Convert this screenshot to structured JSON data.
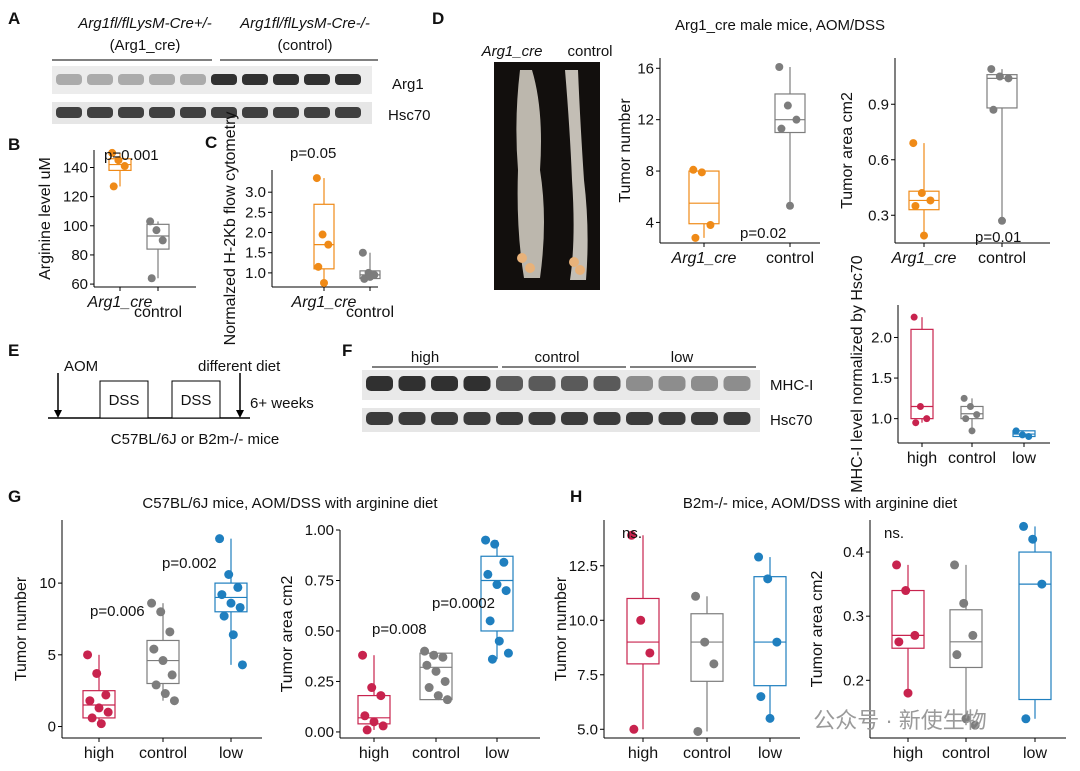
{
  "panel_letters": [
    "A",
    "B",
    "C",
    "D",
    "E",
    "F",
    "G",
    "H"
  ],
  "colors": {
    "high": "#c8234e",
    "control": "#7d7d7d",
    "low": "#1f7fbf",
    "arg1": "#ef8a17",
    "ctrl_dot": "#8a8a8a"
  },
  "panel_a": {
    "group1_line1": "Arg1fl/flLysM-Cre+/-",
    "group1_line2": "(Arg1_cre)",
    "group2_line1": "Arg1fl/flLysM-Cre-/-",
    "group2_line2": "(control)",
    "band1": "Arg1",
    "band2": "Hsc70"
  },
  "panel_b": {
    "pvalue": "p=0.001"
  },
  "panel_c": {
    "pvalue": "p=0.05"
  },
  "panel_d": {
    "title": "Arg1_cre male mice, AOM/DSS",
    "photo_label_1": "Arg1_cre",
    "photo_label_2": "control",
    "pvalue_number": "p=0.02",
    "pvalue_area": "p=0.01"
  },
  "panel_e": {
    "aom": "AOM",
    "diet": "different diet",
    "dss1": "DSS",
    "dss2": "DSS",
    "weeks": "6+ weeks",
    "mice": "C57BL/6J or B2m-/- mice"
  },
  "panel_f": {
    "lane_high": "high",
    "lane_control": "control",
    "lane_low": "low",
    "band1": "MHC-I",
    "band2": "Hsc70"
  },
  "panel_g": {
    "title": "C57BL/6J mice, AOM/DSS with arginine diet",
    "pvalue_high_number": "p=0.006",
    "pvalue_low_number": "p=0.002",
    "pvalue_high_area": "p=0.008",
    "pvalue_low_area": "p=0.0002"
  },
  "panel_h": {
    "title": "B2m-/- mice, AOM/DSS with arginine diet",
    "ns_number": "ns.",
    "ns_area": "ns."
  },
  "watermark": "公众号 · 新使生物",
  "chart_data": [
    {
      "panel": "B",
      "type": "box",
      "categories": [
        "Arg1_cre",
        "control"
      ],
      "ylabel": "Arginine level uM",
      "ylim": [
        58,
        152
      ],
      "yticks": [
        60,
        80,
        100,
        120,
        140
      ],
      "series": [
        {
          "points": [
            150,
            145,
            141,
            127
          ],
          "box": [
            138,
            142,
            146
          ]
        },
        {
          "points": [
            103,
            97,
            90,
            64
          ],
          "box": [
            84,
            93,
            101
          ]
        }
      ]
    },
    {
      "panel": "C",
      "type": "box",
      "categories": [
        "Arg1_cre",
        "control"
      ],
      "ylabel": "Normalzed H-2Kb flow cytometry",
      "ylim": [
        0.65,
        3.55
      ],
      "yticks": [
        1.0,
        1.5,
        2.0,
        2.5,
        3.0
      ],
      "series": [
        {
          "points": [
            3.35,
            1.95,
            1.7,
            1.15,
            0.75
          ],
          "box": [
            1.1,
            1.7,
            2.7
          ]
        },
        {
          "points": [
            1.5,
            1.0,
            0.95,
            0.85,
            0.9
          ],
          "box": [
            0.86,
            0.95,
            1.05
          ]
        }
      ]
    },
    {
      "panel": "D-number",
      "type": "box",
      "categories": [
        "Arg1_cre",
        "control"
      ],
      "ylabel": "Tumor number",
      "ylim": [
        2.4,
        16.8
      ],
      "yticks": [
        4,
        8,
        12,
        16
      ],
      "series": [
        {
          "points": [
            8.1,
            7.9,
            3.8,
            2.8
          ],
          "box": [
            3.9,
            5.5,
            8.0
          ]
        },
        {
          "points": [
            16.1,
            13.1,
            12.0,
            11.3,
            5.3
          ],
          "box": [
            11.0,
            12.0,
            14.0
          ]
        }
      ]
    },
    {
      "panel": "D-area",
      "type": "box",
      "categories": [
        "Arg1_cre",
        "control"
      ],
      "ylabel": "Tumor area cm2",
      "ylim": [
        0.15,
        1.15
      ],
      "yticks": [
        0.3,
        0.6,
        0.9
      ],
      "series": [
        {
          "points": [
            0.69,
            0.42,
            0.38,
            0.35,
            0.19
          ],
          "box": [
            0.33,
            0.38,
            0.43
          ]
        },
        {
          "points": [
            1.09,
            1.05,
            1.04,
            0.87,
            0.27
          ],
          "box": [
            0.88,
            1.04,
            1.06
          ]
        }
      ]
    },
    {
      "panel": "F",
      "type": "box",
      "categories": [
        "high",
        "control",
        "low"
      ],
      "ylabel": "MHC-I level normalized by Hsc70",
      "ylim": [
        0.7,
        2.4
      ],
      "yticks": [
        1.0,
        1.5,
        2.0
      ],
      "series": [
        {
          "points": [
            2.25,
            1.15,
            1.0,
            0.95
          ],
          "box": [
            1.0,
            1.15,
            2.1
          ]
        },
        {
          "points": [
            1.25,
            1.15,
            1.05,
            1.0,
            0.85
          ],
          "box": [
            1.0,
            1.06,
            1.15
          ]
        },
        {
          "points": [
            0.85,
            0.8,
            0.78
          ],
          "box": [
            0.78,
            0.81,
            0.85
          ]
        }
      ]
    },
    {
      "panel": "G-number",
      "type": "box",
      "categories": [
        "high",
        "control",
        "low"
      ],
      "ylabel": "Tumor number",
      "ylim": [
        -0.8,
        14.4
      ],
      "yticks": [
        0,
        5,
        10
      ],
      "series": [
        {
          "points": [
            5.0,
            3.7,
            2.2,
            1.8,
            1.3,
            1.0,
            0.6,
            0.2
          ],
          "box": [
            0.6,
            1.5,
            2.5
          ]
        },
        {
          "points": [
            8.6,
            8.0,
            6.6,
            5.4,
            4.6,
            3.6,
            2.9,
            2.3,
            1.8
          ],
          "box": [
            3.0,
            4.6,
            6.0
          ]
        },
        {
          "points": [
            13.1,
            10.6,
            9.7,
            9.2,
            8.6,
            8.3,
            7.7,
            6.4,
            4.3
          ],
          "box": [
            8.0,
            9.0,
            10.0
          ]
        }
      ]
    },
    {
      "panel": "G-area",
      "type": "box",
      "categories": [
        "high",
        "control",
        "low"
      ],
      "ylabel": "Tumor area cm2",
      "ylim": [
        -0.03,
        1.0
      ],
      "yticks": [
        0.0,
        0.25,
        0.5,
        0.75,
        1.0
      ],
      "series": [
        {
          "points": [
            0.38,
            0.22,
            0.18,
            0.08,
            0.05,
            0.03,
            0.01
          ],
          "box": [
            0.04,
            0.07,
            0.18
          ]
        },
        {
          "points": [
            0.4,
            0.38,
            0.37,
            0.33,
            0.3,
            0.25,
            0.22,
            0.18,
            0.16
          ],
          "box": [
            0.16,
            0.32,
            0.39
          ]
        },
        {
          "points": [
            0.95,
            0.93,
            0.84,
            0.78,
            0.73,
            0.7,
            0.55,
            0.45,
            0.39,
            0.36
          ],
          "box": [
            0.5,
            0.75,
            0.87
          ]
        }
      ]
    },
    {
      "panel": "H-number",
      "type": "box",
      "categories": [
        "high",
        "control",
        "low"
      ],
      "ylabel": "Tumor number",
      "ylim": [
        4.6,
        14.6
      ],
      "yticks": [
        5.0,
        7.5,
        10.0,
        12.5
      ],
      "series": [
        {
          "points": [
            13.9,
            10.0,
            8.5,
            5.0
          ],
          "box": [
            8.0,
            9.0,
            11.0
          ]
        },
        {
          "points": [
            11.1,
            9.0,
            8.0,
            4.9
          ],
          "box": [
            7.2,
            9.0,
            10.3
          ]
        },
        {
          "points": [
            12.9,
            11.9,
            9.0,
            6.5,
            5.5
          ],
          "box": [
            7.0,
            9.0,
            12.0
          ]
        }
      ]
    },
    {
      "panel": "H-area",
      "type": "box",
      "categories": [
        "high",
        "control",
        "low"
      ],
      "ylabel": "Tumor area cm2",
      "ylim": [
        0.11,
        0.45
      ],
      "yticks": [
        0.2,
        0.3,
        0.4
      ],
      "series": [
        {
          "points": [
            0.38,
            0.34,
            0.27,
            0.26,
            0.18
          ],
          "box": [
            0.25,
            0.27,
            0.34
          ]
        },
        {
          "points": [
            0.38,
            0.32,
            0.27,
            0.24,
            0.14,
            0.13
          ],
          "box": [
            0.22,
            0.26,
            0.31
          ]
        },
        {
          "points": [
            0.44,
            0.42,
            0.35,
            0.14
          ],
          "box": [
            0.17,
            0.35,
            0.4
          ]
        }
      ]
    }
  ]
}
